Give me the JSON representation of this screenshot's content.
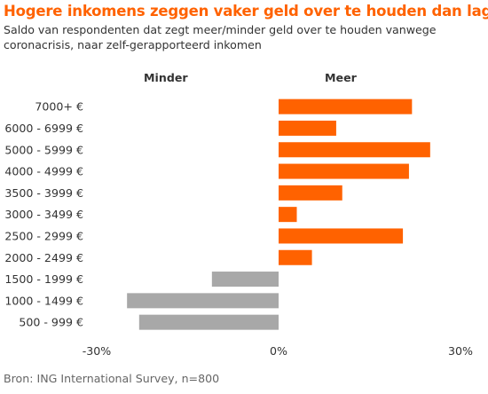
{
  "title": "Hogere inkomens zeggen vaker geld over te houden dan lage",
  "subtitle": "Saldo van respondenten dat zegt meer/minder geld over te houden vanwege coronacrisis, naar zelf-gerapporteerd inkomen",
  "legend": {
    "negative": "Minder",
    "positive": "Meer"
  },
  "source": "Bron: ING International Survey, n=800",
  "colors": {
    "positive": "#ff6200",
    "negative": "#a8a8a8",
    "title": "#ff6200",
    "text": "#333333"
  },
  "chart_data": {
    "type": "bar",
    "orientation": "horizontal",
    "categories": [
      "7000+ €",
      "6000 - 6999 €",
      "5000 - 5999 €",
      "4000 - 4999 €",
      "3500 - 3999 €",
      "3000 - 3499 €",
      "2500 - 2999 €",
      "2000 - 2499 €",
      "1500 - 1999 €",
      "1000 - 1499 €",
      "500 - 999 €"
    ],
    "values": [
      22,
      9.5,
      25,
      21.5,
      10.5,
      3,
      20.5,
      5.5,
      -11,
      -25,
      -23
    ],
    "xlim": [
      -30,
      30
    ],
    "xticks": [
      "-30%",
      "0%",
      "30%"
    ],
    "grid": false
  }
}
